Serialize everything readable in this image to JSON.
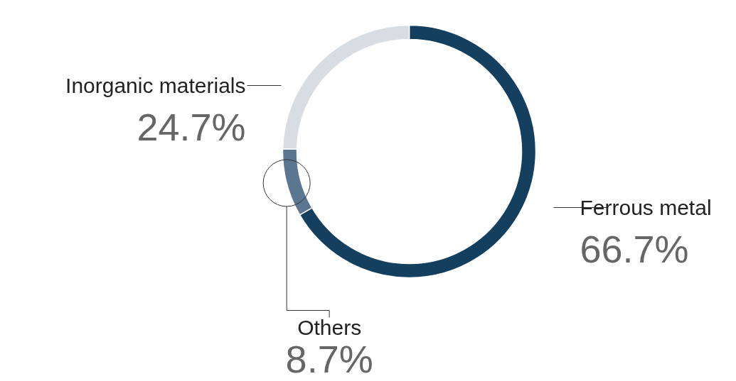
{
  "chart_data": {
    "type": "donut",
    "categories": [
      "Ferrous metal",
      "Others",
      "Inorganic materials"
    ],
    "values": [
      66.7,
      8.7,
      24.7
    ],
    "value_labels": [
      "66.7%",
      "8.7%",
      "24.7%"
    ],
    "colors": [
      "#143f5f",
      "#5a7690",
      "#d8dde3"
    ]
  }
}
